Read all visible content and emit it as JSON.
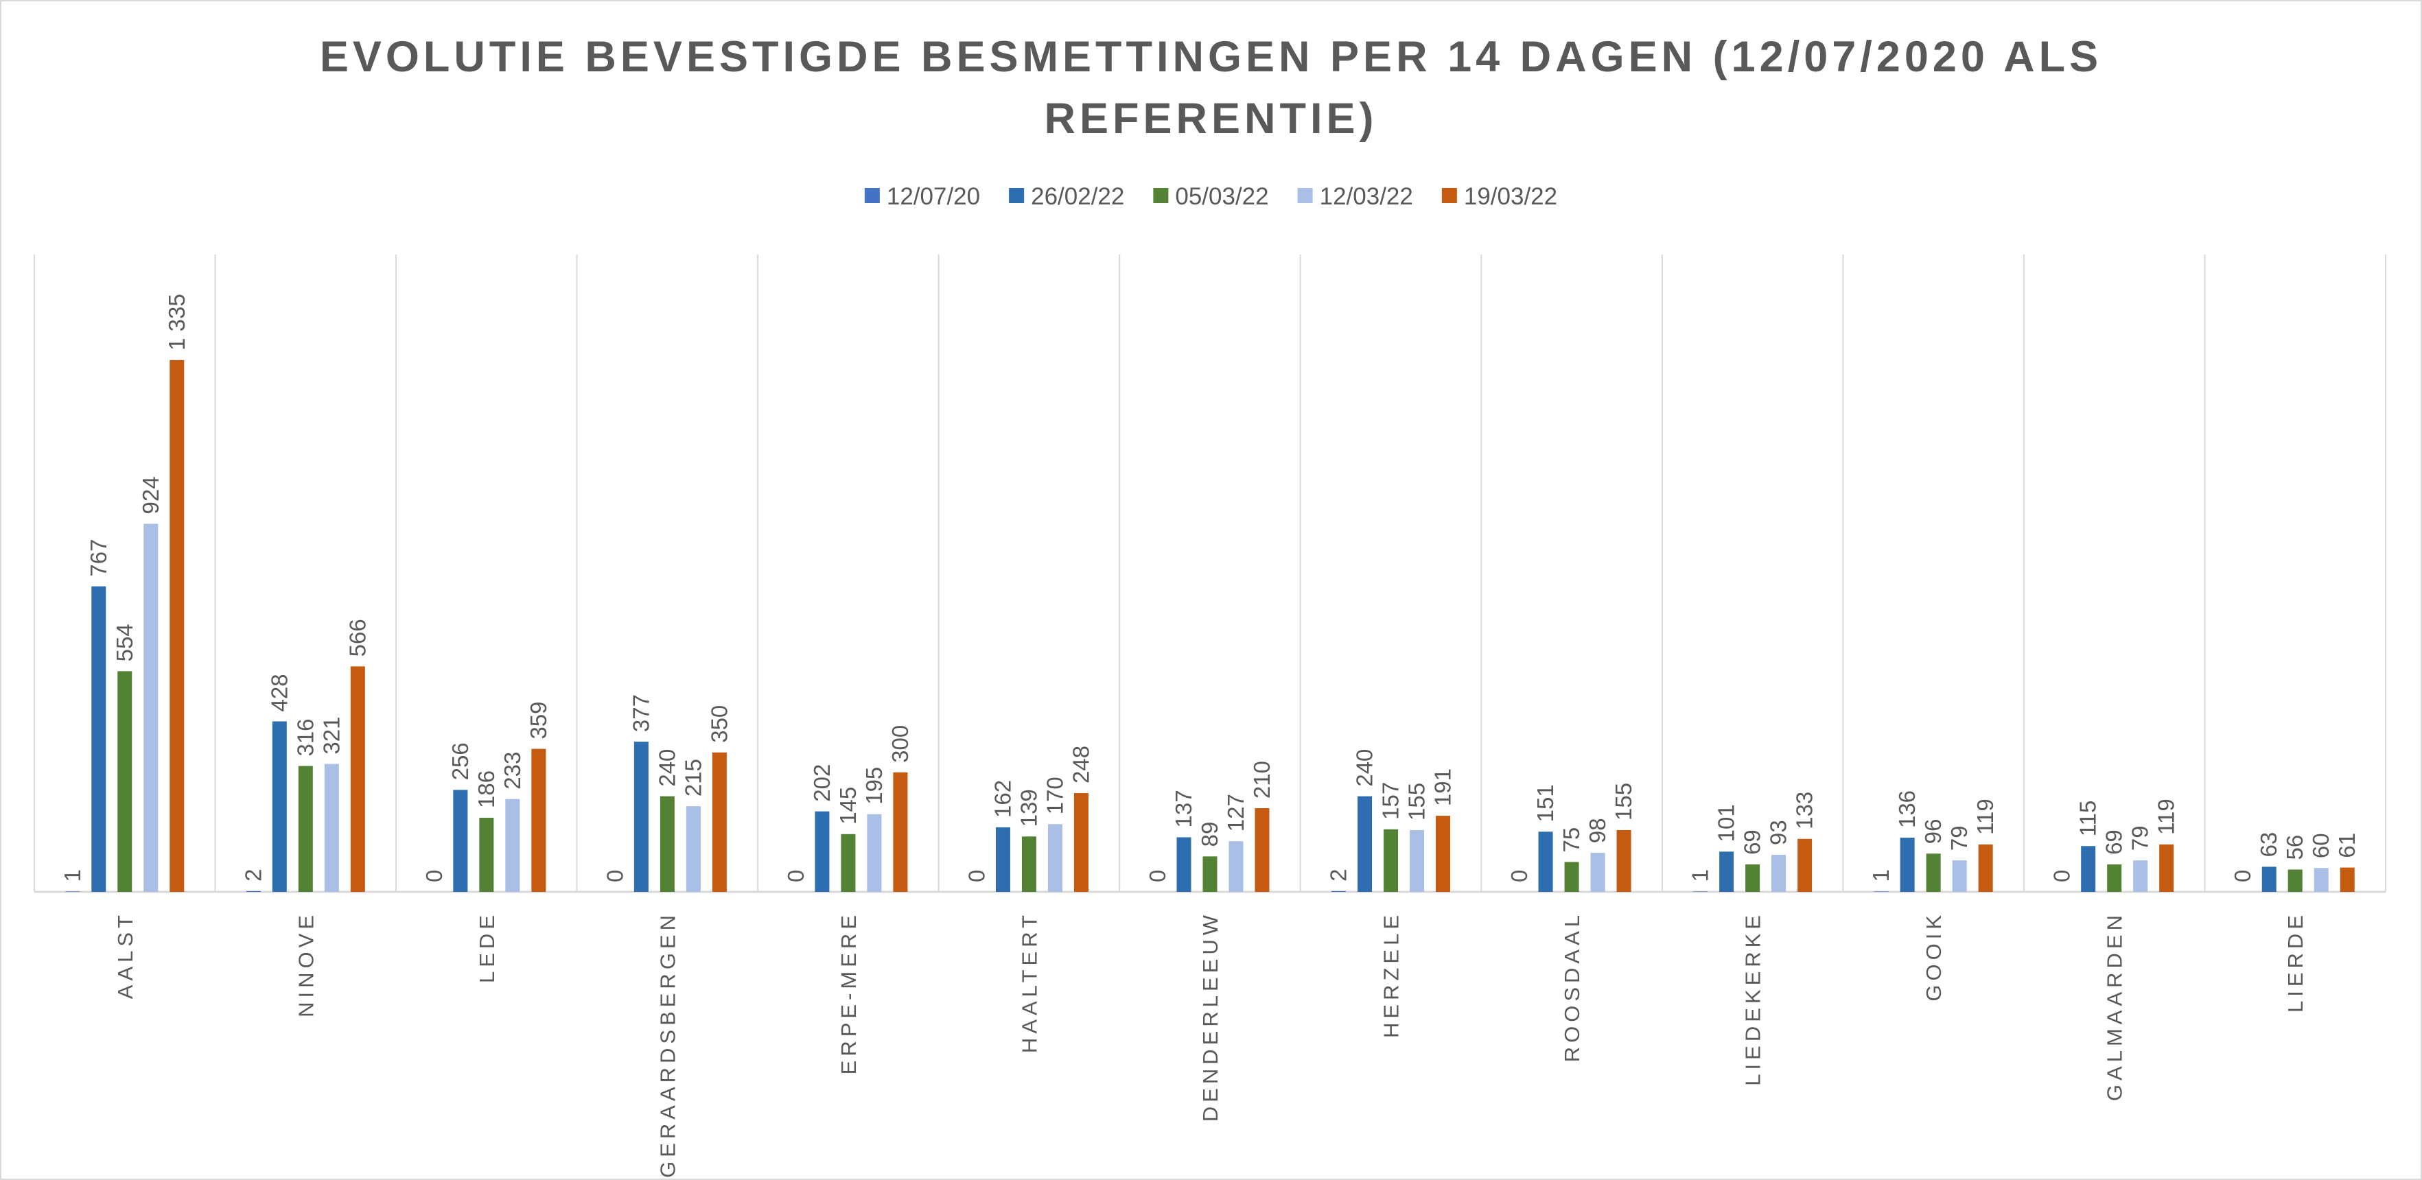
{
  "chart_data": {
    "type": "bar",
    "title": "EVOLUTIE BEVESTIGDE BESMETTINGEN PER 14 DAGEN (12/07/2020 ALS REFERENTIE)",
    "categories": [
      "AALST",
      "NINOVE",
      "LEDE",
      "GERAARDSBERGEN",
      "ERPE-MERE",
      "HAALTERT",
      "DENDERLEEUW",
      "HERZELE",
      "ROOSDAAL",
      "LIEDEKERKE",
      "GOOIK",
      "GALMAARDEN",
      "LIERDE"
    ],
    "series": [
      {
        "name": "12/07/20",
        "color": "#4472c4",
        "values": [
          1,
          2,
          0,
          0,
          0,
          0,
          0,
          2,
          0,
          1,
          1,
          0,
          0
        ]
      },
      {
        "name": "26/02/22",
        "color": "#2e6db0",
        "values": [
          767,
          428,
          256,
          377,
          202,
          162,
          137,
          240,
          151,
          101,
          136,
          115,
          63
        ]
      },
      {
        "name": "05/03/22",
        "color": "#548235",
        "values": [
          554,
          316,
          186,
          240,
          145,
          139,
          89,
          157,
          75,
          69,
          96,
          69,
          56
        ]
      },
      {
        "name": "12/03/22",
        "color": "#a9bfe6",
        "values": [
          924,
          321,
          233,
          215,
          195,
          170,
          127,
          155,
          98,
          93,
          79,
          79,
          60
        ]
      },
      {
        "name": "19/03/22",
        "color": "#c55a11",
        "values": [
          1335,
          566,
          359,
          350,
          300,
          248,
          210,
          191,
          155,
          133,
          119,
          119,
          61
        ],
        "value_labels": [
          "1 335",
          "566",
          "359",
          "350",
          "300",
          "248",
          "210",
          "191",
          "155",
          "133",
          "119",
          "119",
          "61"
        ]
      }
    ],
    "ylim": [
      0,
      1600
    ],
    "grid": true
  }
}
